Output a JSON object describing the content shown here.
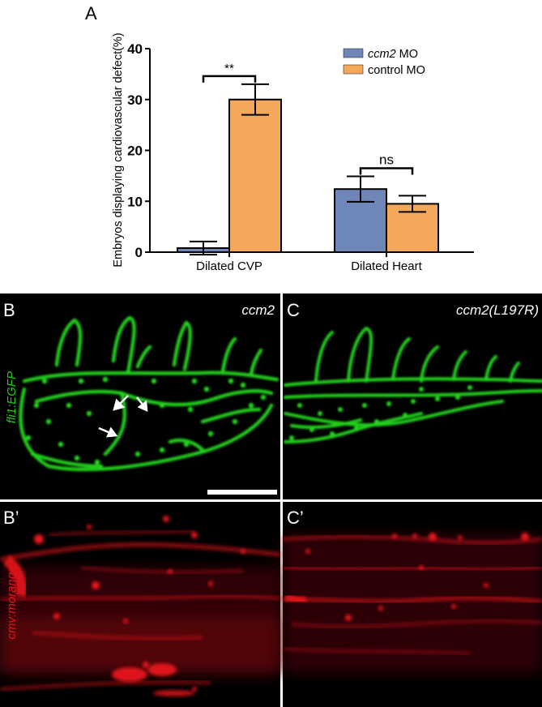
{
  "panel_labels": {
    "a": "A",
    "b": "B",
    "c": "C",
    "b_prime": "B’",
    "c_prime": "C’"
  },
  "image_labels": {
    "b_condition": "ccm2",
    "c_condition_prefix": "ccm2(",
    "c_condition_mutation": "L197R",
    "c_condition_suffix": ")",
    "green_reporter": "fli1:EGFP",
    "red_reporter": "cmv:morange"
  },
  "colors": {
    "ccm2": "#6e87b8",
    "control": "#f4a85a",
    "green_channel": "#22d41a",
    "red_channel": "#e8141a"
  },
  "chart_data": {
    "type": "bar",
    "ylabel": "Embryos displaying cardiovascular defect(%)",
    "xlabel": "",
    "ylim": [
      0,
      40
    ],
    "yticks": [
      0,
      10,
      20,
      30,
      40
    ],
    "categories": [
      "Dilated CVP",
      "Dilated Heart"
    ],
    "legend_position": "top-right",
    "series": [
      {
        "name_prefix": "ccm2",
        "name_suffix": " MO",
        "color": "#6e87b8",
        "values": [
          0.8,
          12.4
        ],
        "errors": [
          1.3,
          2.5
        ]
      },
      {
        "name_prefix": "control MO",
        "name_suffix": "",
        "color": "#f4a85a",
        "values": [
          30.0,
          9.5
        ],
        "errors": [
          3.0,
          1.6
        ]
      }
    ],
    "annotations": [
      {
        "category": 0,
        "text": "**"
      },
      {
        "category": 1,
        "text": "ns"
      }
    ]
  }
}
